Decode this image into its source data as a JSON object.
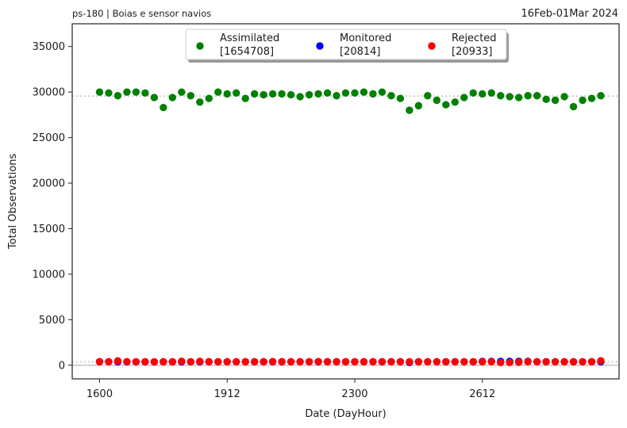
{
  "header": {
    "left": "ps-180  |  Boias e sensor navios",
    "right": "16Feb-01Mar 2024"
  },
  "chart_data": {
    "type": "scatter",
    "title": "",
    "xlabel": "Date (DayHour)",
    "ylabel": "Total Observations",
    "ylim": [
      -1500,
      37500
    ],
    "xlim": [
      -3,
      57
    ],
    "y_ticks": [
      0,
      5000,
      10000,
      15000,
      20000,
      25000,
      30000,
      35000
    ],
    "x_ticks": [
      {
        "index": 0,
        "label": "1600"
      },
      {
        "index": 14,
        "label": "1912"
      },
      {
        "index": 28,
        "label": "2300"
      },
      {
        "index": 42,
        "label": "2612"
      }
    ],
    "legend_position": "top-center",
    "reference_lines": [
      {
        "series": "Assimilated",
        "value": 29560,
        "style": "dotted"
      },
      {
        "series": "Rejected",
        "value": 380,
        "style": "dotted"
      },
      {
        "series": "Zero",
        "value": 0,
        "style": "solid"
      }
    ],
    "series": [
      {
        "name": "Assimilated",
        "count": "[1654708]",
        "color": "#008000",
        "values": [
          30000,
          29900,
          29600,
          30000,
          30000,
          29900,
          29400,
          28300,
          29400,
          30000,
          29600,
          28900,
          29300,
          30000,
          29800,
          29900,
          29300,
          29800,
          29700,
          29800,
          29800,
          29700,
          29500,
          29700,
          29800,
          29900,
          29600,
          29900,
          29900,
          30000,
          29800,
          30000,
          29600,
          29300,
          28000,
          28500,
          29600,
          29100,
          28600,
          28900,
          29400,
          29900,
          29800,
          29900,
          29600,
          29500,
          29400,
          29600,
          29600,
          29200,
          29100,
          29500,
          28400,
          29100,
          29300,
          29600
        ]
      },
      {
        "name": "Monitored",
        "count": "[20814]",
        "color": "#0000ff",
        "values": [
          380,
          380,
          370,
          370,
          370,
          370,
          370,
          370,
          370,
          370,
          370,
          370,
          380,
          380,
          380,
          380,
          380,
          380,
          380,
          380,
          380,
          380,
          380,
          380,
          380,
          380,
          380,
          380,
          380,
          380,
          380,
          380,
          380,
          380,
          300,
          380,
          380,
          380,
          380,
          380,
          380,
          380,
          420,
          420,
          420,
          420,
          420,
          420,
          380,
          380,
          380,
          380,
          380,
          380,
          380,
          380
        ]
      },
      {
        "name": "Rejected",
        "count": "[20933]",
        "color": "#ff0000",
        "values": [
          390,
          380,
          470,
          390,
          380,
          380,
          360,
          380,
          380,
          430,
          380,
          420,
          380,
          380,
          380,
          380,
          380,
          380,
          380,
          400,
          380,
          380,
          380,
          380,
          400,
          380,
          380,
          380,
          380,
          380,
          380,
          380,
          380,
          380,
          380,
          380,
          380,
          380,
          380,
          380,
          380,
          380,
          380,
          380,
          300,
          300,
          320,
          380,
          380,
          380,
          380,
          380,
          380,
          380,
          380,
          490
        ]
      }
    ]
  }
}
